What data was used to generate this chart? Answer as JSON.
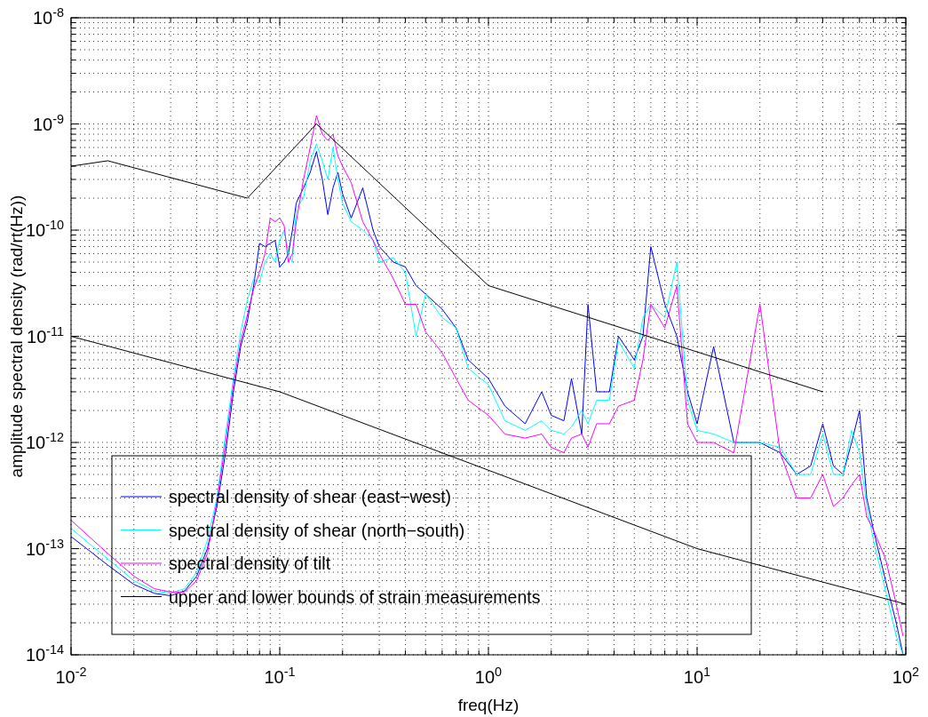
{
  "chart_data": {
    "type": "line",
    "xlabel": "freq(Hz)",
    "ylabel": "amplitude spectral density (rad/rt(Hz))",
    "log": "xy",
    "grid": true,
    "legend": "bottom left",
    "line_style": "solid",
    "marker": "none",
    "xlim": [
      0.01,
      100
    ],
    "ylim": [
      1e-14,
      1e-08
    ],
    "xticks": [
      {
        "value": 0.01,
        "label": "10$^{-2}$"
      },
      {
        "value": 0.1,
        "label": "10$^{-1}$"
      },
      {
        "value": 1,
        "label": "10$^{0}$"
      },
      {
        "value": 10,
        "label": "10$^{1}$"
      },
      {
        "value": 100,
        "label": "10$^{2}$"
      }
    ],
    "yticks": [
      {
        "value": 1e-14,
        "label": "10$^{-14}$"
      },
      {
        "value": 1e-13,
        "label": "10$^{-13}$"
      },
      {
        "value": 1e-12,
        "label": "10$^{-12}$"
      },
      {
        "value": 1e-11,
        "label": "10$^{-11}$"
      },
      {
        "value": 1e-10,
        "label": "10$^{-10}$"
      },
      {
        "value": 1e-09,
        "label": "10$^{-9}$"
      },
      {
        "value": 1e-08,
        "label": "10$^{-8}$"
      }
    ],
    "x": [
      0.01,
      0.015,
      0.02,
      0.025,
      0.03,
      0.035,
      0.04,
      0.045,
      0.05,
      0.055,
      0.06,
      0.065,
      0.07,
      0.075,
      0.08,
      0.085,
      0.09,
      0.095,
      0.1,
      0.105,
      0.11,
      0.115,
      0.12,
      0.13,
      0.14,
      0.15,
      0.16,
      0.17,
      0.18,
      0.19,
      0.2,
      0.22,
      0.25,
      0.28,
      0.3,
      0.35,
      0.4,
      0.45,
      0.5,
      0.6,
      0.7,
      0.8,
      1.0,
      1.2,
      1.5,
      1.8,
      2.0,
      2.3,
      2.5,
      2.8,
      3.0,
      3.3,
      3.8,
      4.2,
      5,
      5.5,
      6,
      7,
      8,
      9,
      10,
      12,
      15,
      20,
      25,
      30,
      35,
      40,
      45,
      50,
      55,
      60,
      65,
      70,
      80,
      90,
      97
    ],
    "series": [
      {
        "name": "spectral density of shear (east−west)",
        "color": "#0000ff",
        "values": [
          1.3e-13,
          7e-14,
          4.6e-14,
          3.8e-14,
          3.6e-14,
          4e-14,
          5.5e-14,
          1e-13,
          2.5e-13,
          8e-13,
          3e-12,
          8e-12,
          1.4e-11,
          3e-11,
          7.5e-11,
          7e-11,
          7.5e-11,
          8e-11,
          4.5e-11,
          5e-11,
          6e-11,
          1e-10,
          1.8e-10,
          2.5e-10,
          3.5e-10,
          5.5e-10,
          3e-10,
          1.4e-10,
          2.5e-10,
          3.5e-10,
          2.2e-10,
          1.3e-10,
          2.5e-10,
          1e-10,
          7e-11,
          5e-11,
          4.5e-11,
          3e-11,
          2.5e-11,
          1.8e-11,
          1.2e-11,
          6e-12,
          4e-12,
          2.2e-12,
          1.5e-12,
          3e-12,
          1.8e-12,
          1.6e-12,
          4e-12,
          1.2e-12,
          2e-11,
          3e-12,
          3e-12,
          1e-11,
          6e-12,
          1e-11,
          7e-11,
          2e-11,
          1e-11,
          3e-12,
          1.5e-12,
          8e-12,
          1e-12,
          1e-12,
          8e-13,
          5e-13,
          6e-13,
          1.5e-12,
          6e-13,
          5e-13,
          1e-12,
          2e-12,
          3e-13,
          1.5e-13,
          5e-14,
          2e-14,
          1e-14
        ]
      },
      {
        "name": "spectral density of shear (north−south)",
        "color": "#00ffff",
        "values": [
          1.55e-13,
          8e-14,
          5e-14,
          4e-14,
          3.8e-14,
          4.2e-14,
          6e-14,
          1.2e-13,
          3e-13,
          1.2e-12,
          4e-12,
          1.1e-11,
          2.2e-11,
          3.5e-11,
          3.2e-11,
          5e-11,
          6e-11,
          5e-11,
          8e-11,
          1e-10,
          6e-11,
          5e-11,
          1.6e-10,
          2e-10,
          4.5e-10,
          6.5e-10,
          4.5e-10,
          3e-10,
          6e-10,
          3e-10,
          1.8e-10,
          1.2e-10,
          1e-10,
          8e-11,
          5e-11,
          5.5e-11,
          4e-11,
          1e-11,
          2.5e-11,
          1.5e-11,
          1.2e-11,
          5e-12,
          3.5e-12,
          1.6e-12,
          1.3e-12,
          1.6e-12,
          1.3e-12,
          1.2e-12,
          1.4e-12,
          2e-12,
          1.5e-12,
          2.5e-12,
          2.5e-12,
          9e-12,
          5e-12,
          1.5e-11,
          2e-11,
          1.5e-11,
          5e-11,
          2.5e-12,
          1.3e-12,
          1.2e-12,
          1e-12,
          1e-12,
          9e-13,
          5e-13,
          5e-13,
          1.2e-12,
          5e-13,
          5e-13,
          1.3e-12,
          8e-13,
          2.5e-13,
          1.2e-13,
          4e-14,
          1.5e-14,
          1e-14
        ]
      },
      {
        "name": "spectral density of tilt",
        "color": "#ff00ff",
        "values": [
          1.85e-13,
          9e-14,
          5.5e-14,
          4.2e-14,
          3.9e-14,
          3.9e-14,
          5e-14,
          9e-14,
          2.8e-13,
          1e-12,
          3.5e-12,
          9e-12,
          1.6e-11,
          2.8e-11,
          4e-11,
          6e-11,
          1.3e-10,
          1.2e-10,
          1.3e-10,
          1.1e-10,
          5e-11,
          6e-11,
          1.2e-10,
          3e-10,
          6e-10,
          1.2e-09,
          8e-10,
          7e-10,
          8e-10,
          5e-10,
          4e-10,
          2.8e-10,
          1.2e-10,
          8e-11,
          6e-11,
          3.5e-11,
          2e-11,
          2e-11,
          1.1e-11,
          7e-12,
          4e-12,
          2.5e-12,
          1.8e-12,
          1.2e-12,
          1.1e-12,
          1.2e-12,
          9e-13,
          8e-13,
          1.1e-12,
          1.2e-12,
          9e-13,
          1.5e-12,
          1.5e-12,
          2.2e-12,
          2.5e-12,
          6e-12,
          2e-11,
          1.2e-11,
          3e-11,
          1.5e-12,
          1e-12,
          1e-12,
          8e-13,
          2e-11,
          8e-13,
          3e-13,
          3e-13,
          5e-13,
          2.5e-13,
          3e-13,
          4e-13,
          5e-13,
          2e-13,
          1.5e-13,
          8e-14,
          3e-14,
          1.5e-14
        ]
      },
      {
        "name": "upper and lower bounds of strain measurements",
        "color": "#000000",
        "x": [
          0.01,
          0.015,
          0.07,
          0.15,
          1,
          40
        ],
        "values": [
          4e-10,
          4.5e-10,
          2e-10,
          1e-09,
          3e-11,
          3e-12
        ]
      },
      {
        "color": "#000000",
        "x": [
          0.01,
          0.1,
          10,
          100
        ],
        "values": [
          1e-11,
          3e-12,
          1e-13,
          3e-14
        ]
      }
    ]
  }
}
